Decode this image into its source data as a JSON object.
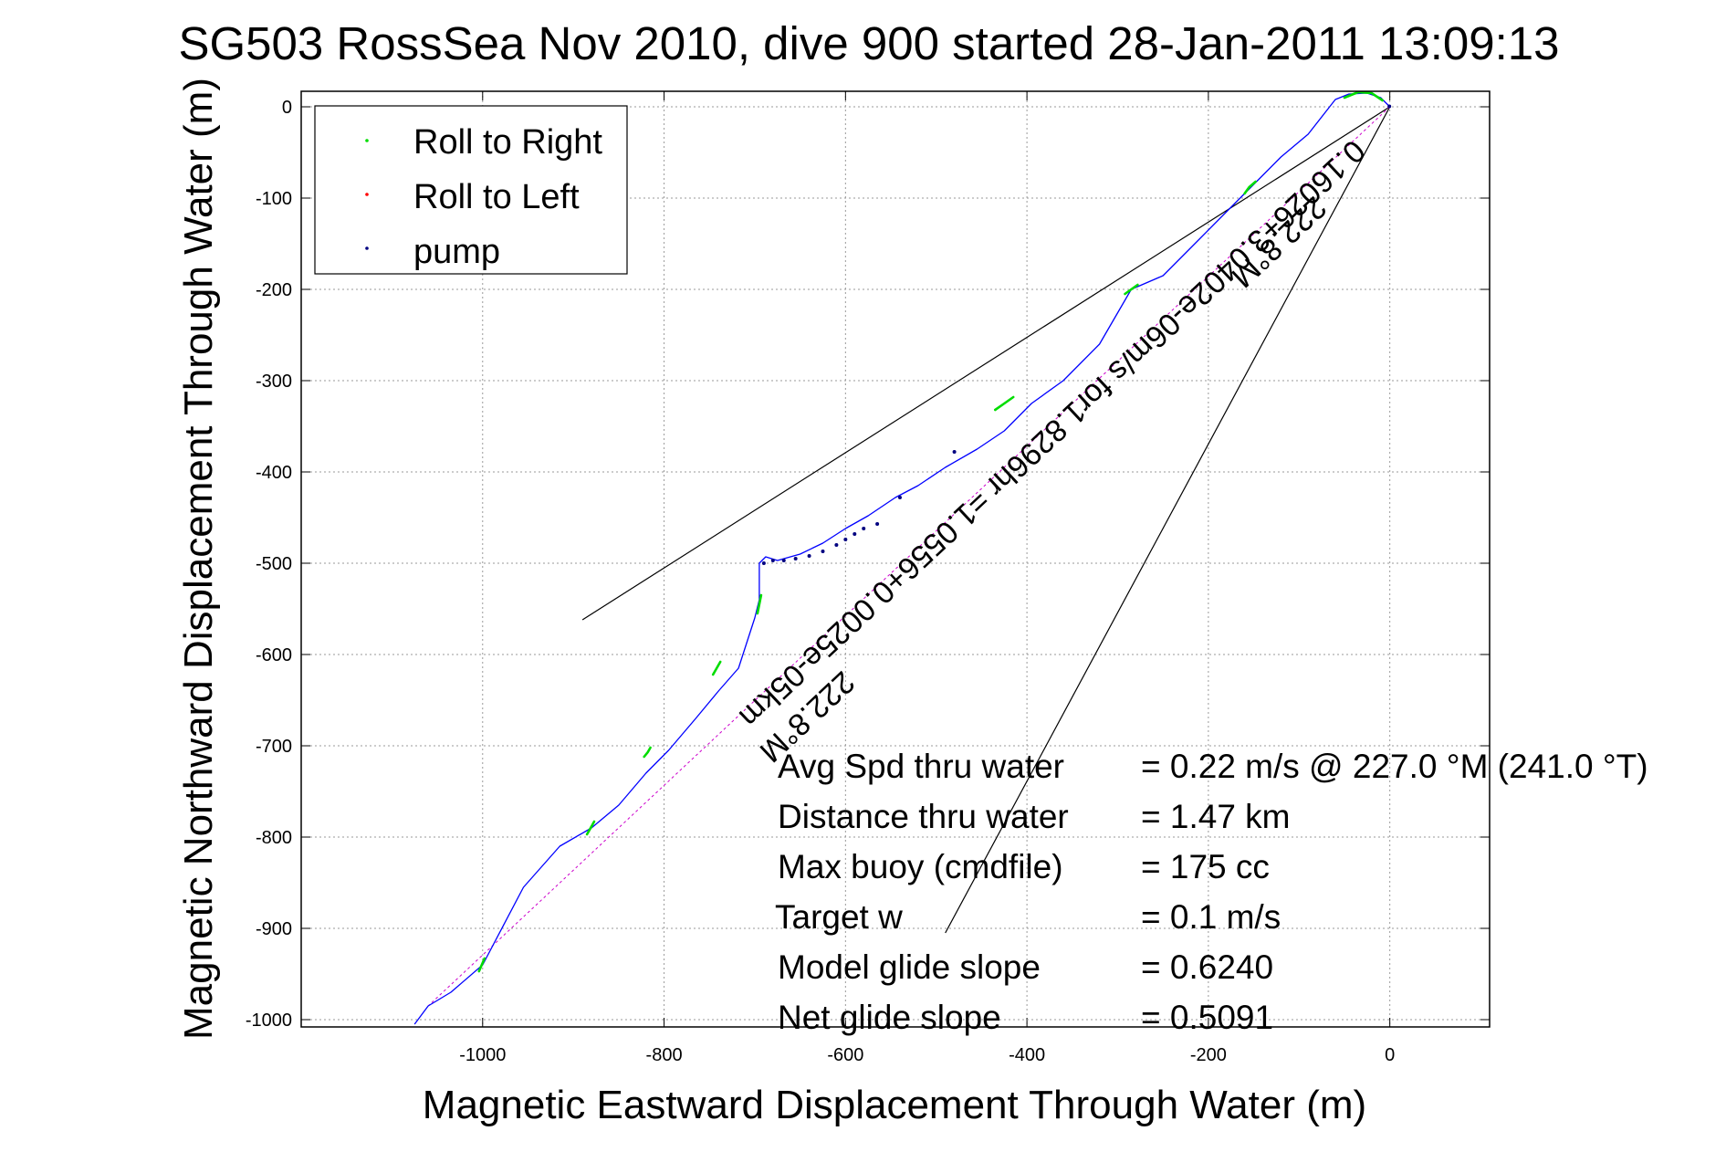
{
  "chart_data": {
    "type": "line",
    "title": "SG503 RossSea Nov 2010, dive 900 started 28-Jan-2011 13:09:13",
    "xlabel": "Magnetic Eastward Displacement Through Water (m)",
    "ylabel": "Magnetic Northward Displacement Through Water (m)",
    "xlim": [
      -1200,
      110
    ],
    "ylim": [
      -1008,
      17
    ],
    "xticks": [
      -1000,
      -800,
      -600,
      -400,
      -200,
      0
    ],
    "yticks": [
      0,
      -100,
      -200,
      -300,
      -400,
      -500,
      -600,
      -700,
      -800,
      -900,
      -1000
    ],
    "grid": true,
    "legend_position": "top-left",
    "legend": [
      {
        "label": "Roll to Right",
        "color": "#00dd00"
      },
      {
        "label": "Roll to Left",
        "color": "#ff0000"
      },
      {
        "label": "pump",
        "color": "#000080"
      }
    ],
    "track": {
      "color": "#0000ff",
      "x": [
        0,
        -10,
        -25,
        -45,
        -60,
        -90,
        -120,
        -150,
        -175,
        -210,
        -250,
        -285,
        -320,
        -360,
        -395,
        -425,
        -455,
        -490,
        -520,
        -545,
        -575,
        -600,
        -625,
        -650,
        -675,
        -688,
        -695,
        -695,
        -700,
        -718,
        -740,
        -765,
        -795,
        -820,
        -850,
        -880,
        -915,
        -955,
        -1000,
        -1035,
        -1060,
        -1075
      ],
      "y": [
        0,
        10,
        15,
        14,
        8,
        -30,
        -55,
        -85,
        -110,
        -145,
        -185,
        -200,
        -260,
        -300,
        -325,
        -355,
        -375,
        -395,
        -415,
        -428,
        -448,
        -462,
        -478,
        -490,
        -497,
        -493,
        -500,
        -540,
        -560,
        -615,
        -640,
        -670,
        -705,
        -730,
        -765,
        -790,
        -810,
        -855,
        -940,
        -970,
        -985,
        -1005
      ]
    },
    "roll_right_segments": [
      {
        "x": [
          -50,
          -35,
          -20,
          -8
        ],
        "y": [
          10,
          16,
          15,
          7
        ]
      },
      {
        "x": [
          -148,
          -155,
          -160
        ],
        "y": [
          -82,
          -88,
          -95
        ]
      },
      {
        "x": [
          -278,
          -285,
          -292
        ],
        "y": [
          -195,
          -200,
          -205
        ]
      },
      {
        "x": [
          -415,
          -425,
          -435
        ],
        "y": [
          -318,
          -325,
          -332
        ]
      },
      {
        "x": [
          -693,
          -695,
          -697
        ],
        "y": [
          -535,
          -545,
          -555
        ]
      },
      {
        "x": [
          -738,
          -742,
          -746
        ],
        "y": [
          -608,
          -615,
          -622
        ]
      },
      {
        "x": [
          -815,
          -818,
          -822
        ],
        "y": [
          -702,
          -707,
          -712
        ]
      },
      {
        "x": [
          -877,
          -881,
          -885
        ],
        "y": [
          -783,
          -790,
          -797
        ]
      },
      {
        "x": [
          -998,
          -1001,
          -1004
        ],
        "y": [
          -933,
          -940,
          -947
        ]
      }
    ],
    "pump_points": {
      "x": [
        -690,
        -680,
        -668,
        -655,
        -640,
        -625,
        -610,
        -600,
        -590,
        -580,
        -565,
        -540,
        -480,
        -0.5
      ],
      "y": [
        -500,
        -497,
        -497,
        -495,
        -492,
        -487,
        -480,
        -474,
        -468,
        -462,
        -457,
        -428,
        -378,
        0.5
      ]
    },
    "reference_lines": [
      {
        "x": [
          0,
          -890
        ],
        "y": [
          0,
          -562
        ]
      },
      {
        "x": [
          0,
          -490
        ],
        "y": [
          0,
          -905
        ]
      }
    ],
    "heading_line": {
      "color": "#cc00cc",
      "x": [
        0,
        -1060
      ],
      "y": [
        0,
        -985
      ]
    },
    "rotated_labels": [
      {
        "text": "222.8°M",
        "x": -130,
        "y": -140
      },
      {
        "text": "0.16026+3.0402e-06m/s for1.8296hr =1.0556+0.0025e-05km",
        "x": -380,
        "y": -350
      },
      {
        "text": "222.8°M",
        "x": -650,
        "y": -660
      }
    ],
    "annotations": [
      {
        "label": "Avg Spd thru water",
        "value": "=  0.22 m/s @ 227.0 °M (241.0 °T)"
      },
      {
        "label": "Distance thru water",
        "value": "=  1.47 km"
      },
      {
        "label": "Max buoy (cmdfile)",
        "value": "= 175 cc"
      },
      {
        "label": "Target w",
        "value": "= 0.1 m/s"
      },
      {
        "label": "Model glide slope",
        "value": "= 0.6240"
      },
      {
        "label": "Net glide slope",
        "value": "= 0.5091"
      }
    ]
  }
}
